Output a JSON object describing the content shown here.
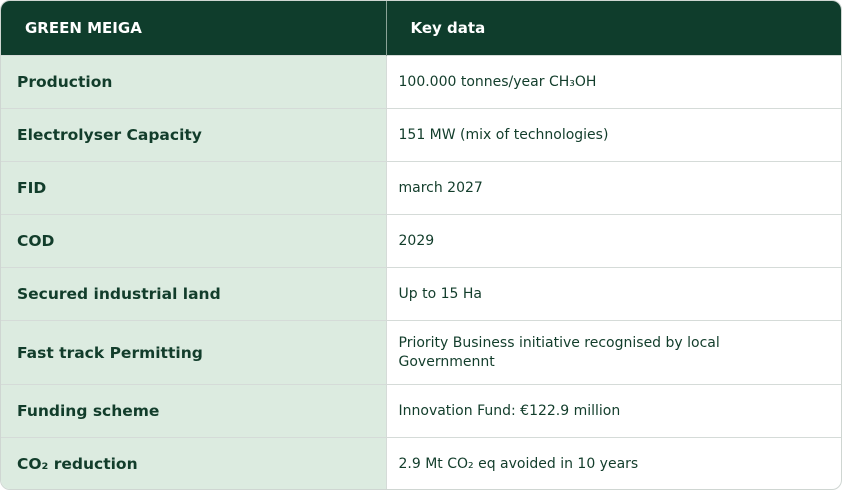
{
  "table": {
    "header": [
      "GREEN MEIGA",
      "Key data"
    ],
    "rows": [
      [
        "Production",
        "100.000 tonnes/year CH₃OH"
      ],
      [
        "Electrolyser Capacity",
        "151 MW (mix of technologies)"
      ],
      [
        "FID",
        "march 2027"
      ],
      [
        "COD",
        "2029"
      ],
      [
        "Secured industrial land",
        "Up to 15 Ha"
      ],
      [
        "Fast track Permitting",
        "Priority Business initiative recognised by local Governmennt"
      ],
      [
        "Funding scheme",
        "Innovation Fund: €122.9 million"
      ],
      [
        "CO₂ reduction",
        "2.9 Mt CO₂ eq avoided in 10 years"
      ]
    ]
  }
}
